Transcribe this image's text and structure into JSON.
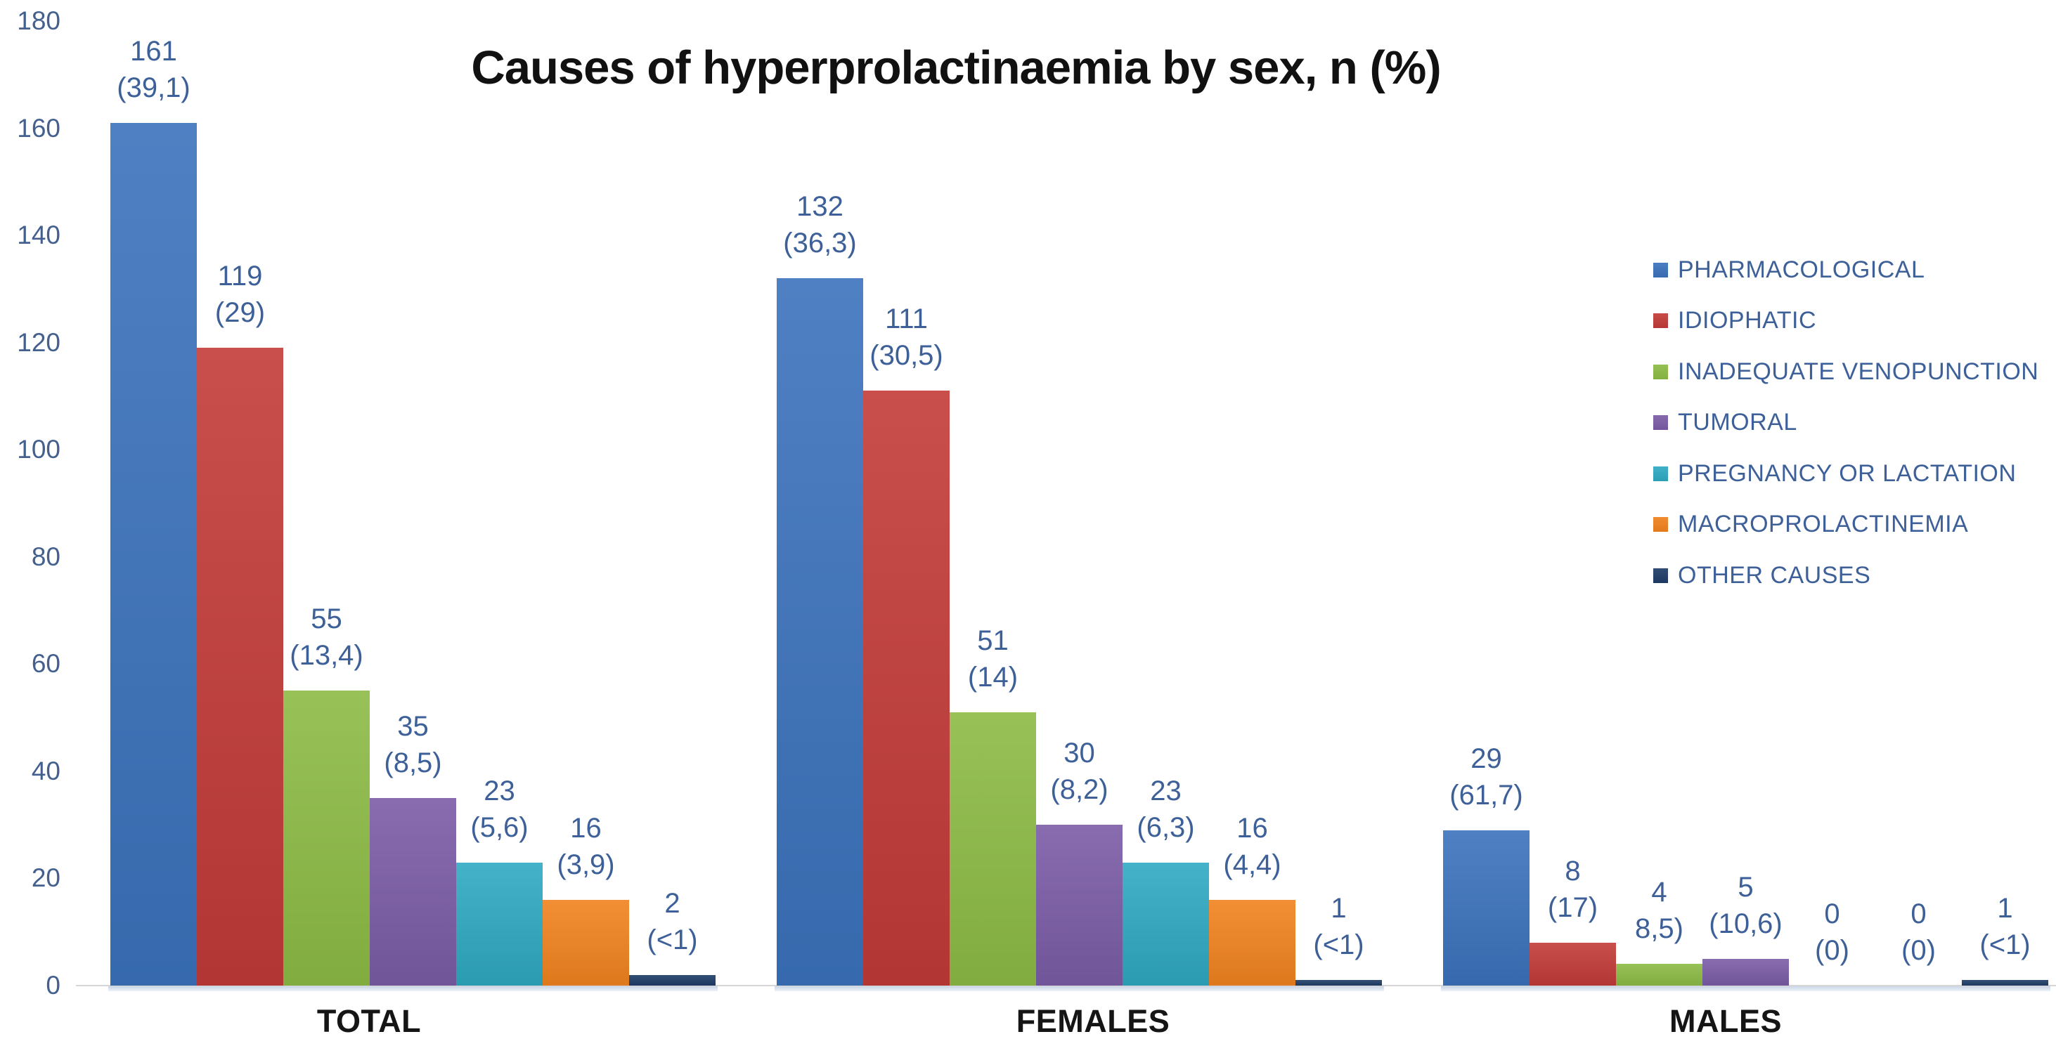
{
  "chart_data": {
    "type": "bar",
    "title": "Causes of hyperprolactinaemia by sex, n (%)",
    "categories": [
      "TOTAL",
      "FEMALES",
      "MALES"
    ],
    "y_axis": {
      "min": 0,
      "max": 180,
      "step": 20,
      "ticks": [
        "180",
        "160",
        "140",
        "120",
        "100",
        "80",
        "60",
        "40",
        "20",
        "0"
      ],
      "gridlines": false
    },
    "legend_position": "right",
    "colors": {
      "data_label_text": "#3e6098",
      "axis_tick_text": "#44608e",
      "category_label_text": "#151515",
      "title_text": "#111111"
    },
    "series": [
      {
        "name": "PHARMACOLOGICAL",
        "color": "#3b72bc",
        "points": [
          {
            "value": 161,
            "n": "161",
            "pct": "(39,1)"
          },
          {
            "value": 132,
            "n": "132",
            "pct": "(36,3)"
          },
          {
            "value": 29,
            "n": "29",
            "pct": "(61,7)"
          }
        ]
      },
      {
        "name": "IDIOPHATIC",
        "color": "#c23b38",
        "points": [
          {
            "value": 119,
            "n": "119",
            "pct": "(29)"
          },
          {
            "value": 111,
            "n": "111",
            "pct": "(30,5)"
          },
          {
            "value": 8,
            "n": "8",
            "pct": "(17)"
          }
        ]
      },
      {
        "name": "INADEQUATE VENOPUNCTION",
        "color": "#8cbb45",
        "points": [
          {
            "value": 55,
            "n": "55",
            "pct": "(13,4)"
          },
          {
            "value": 51,
            "n": "51",
            "pct": "(14)"
          },
          {
            "value": 4,
            "n": "4",
            "pct": "8,5)"
          }
        ]
      },
      {
        "name": "TUMORAL",
        "color": "#7b5ca6",
        "points": [
          {
            "value": 35,
            "n": "35",
            "pct": "(8,5)"
          },
          {
            "value": 30,
            "n": "30",
            "pct": "(8,2)"
          },
          {
            "value": 5,
            "n": "5",
            "pct": "(10,6)"
          }
        ]
      },
      {
        "name": "PREGNANCY OR LACTATION",
        "color": "#2fa9c2",
        "points": [
          {
            "value": 23,
            "n": "23",
            "pct": "(5,6)"
          },
          {
            "value": 23,
            "n": "23",
            "pct": "(6,3)"
          },
          {
            "value": 0,
            "n": "0",
            "pct": "(0)"
          }
        ]
      },
      {
        "name": "MACROPROLACTINEMIA",
        "color": "#f0821f",
        "points": [
          {
            "value": 16,
            "n": "16",
            "pct": "(3,9)"
          },
          {
            "value": 16,
            "n": "16",
            "pct": "(4,4)"
          },
          {
            "value": 0,
            "n": "0",
            "pct": "(0)"
          }
        ]
      },
      {
        "name": "OTHER CAUSES",
        "color": "#1f3d68",
        "points": [
          {
            "value": 2,
            "n": "2",
            "pct": "(<1)"
          },
          {
            "value": 1,
            "n": "1",
            "pct": "(<1)"
          },
          {
            "value": 1,
            "n": "1",
            "pct": "(<1)"
          }
        ]
      }
    ]
  }
}
